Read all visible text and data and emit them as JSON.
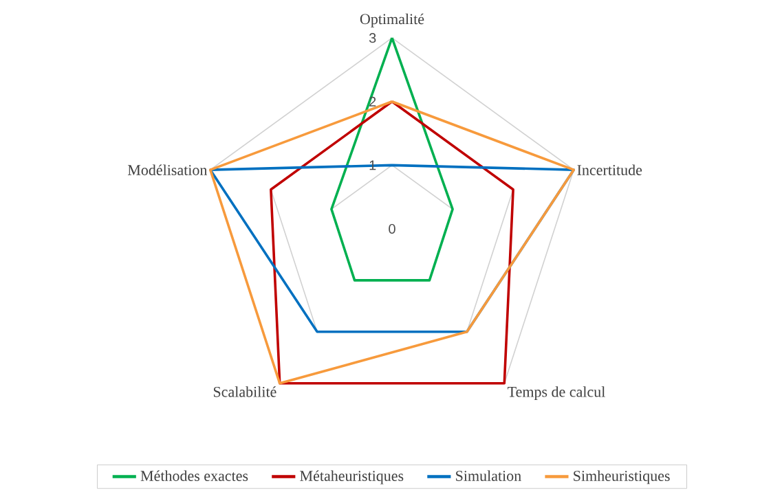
{
  "chart_data": {
    "type": "radar",
    "categories": [
      "Optimalité",
      "Incertitude",
      "Temps de calcul",
      "Scalabilité",
      "Modélisation"
    ],
    "series": [
      {
        "name": "Méthodes exactes",
        "color": "#00b050",
        "values": [
          3,
          1,
          1,
          1,
          1
        ]
      },
      {
        "name": "Métaheuristiques",
        "color": "#c00000",
        "values": [
          2,
          2,
          3,
          3,
          2
        ]
      },
      {
        "name": "Simulation",
        "color": "#0070c0",
        "values": [
          1,
          3,
          2,
          2,
          3
        ]
      },
      {
        "name": "Simheuristiques",
        "color": "#f79a3c",
        "values": [
          2,
          3,
          2,
          3,
          3
        ]
      }
    ],
    "ylim": [
      0,
      3
    ],
    "yticks": [
      0,
      1,
      2,
      3
    ],
    "grid": true,
    "legend": "bottom"
  }
}
